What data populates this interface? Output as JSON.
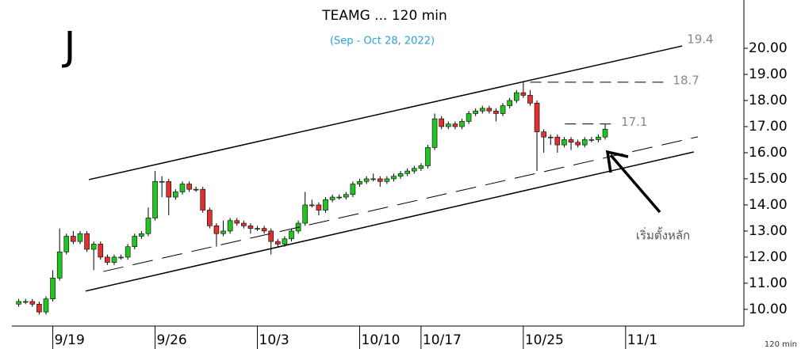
{
  "chart_data": {
    "type": "candlestick",
    "title": "TEAMG ... 120 min",
    "subtitle": "(Sep - Oct 28, 2022)",
    "logo": "J",
    "timeframe": "120 min",
    "annotation": "เริ่มตั้งหลัก",
    "up_color": "#22c422",
    "down_color": "#e03030",
    "xlim": [
      -1,
      106
    ],
    "xticks": [
      {
        "value": 5,
        "label": "9/19"
      },
      {
        "value": 20,
        "label": "9/26"
      },
      {
        "value": 35,
        "label": "10/3"
      },
      {
        "value": 50,
        "label": "10/10"
      },
      {
        "value": 59,
        "label": "10/17"
      },
      {
        "value": 74,
        "label": "10/25"
      },
      {
        "value": 89,
        "label": "11/1"
      }
    ],
    "ylim": [
      9.36,
      21.85
    ],
    "yticks": [
      {
        "value": 10,
        "label": "10.00"
      },
      {
        "value": 11,
        "label": "11.00"
      },
      {
        "value": 12,
        "label": "12.00"
      },
      {
        "value": 13,
        "label": "13.00"
      },
      {
        "value": 14,
        "label": "14.00"
      },
      {
        "value": 15,
        "label": "15.00"
      },
      {
        "value": 16,
        "label": "16.00"
      },
      {
        "value": 17,
        "label": "17.00"
      },
      {
        "value": 18,
        "label": "18.00"
      },
      {
        "value": 19,
        "label": "19.00"
      },
      {
        "value": 20,
        "label": "20.00"
      }
    ],
    "open": [
      10.2,
      10.3,
      10.3,
      10.2,
      9.9,
      10.4,
      11.2,
      12.2,
      12.8,
      12.6,
      12.9,
      12.3,
      12.5,
      12.0,
      11.8,
      12.0,
      12.0,
      12.4,
      12.8,
      12.9,
      13.5,
      14.9,
      14.9,
      14.3,
      14.5,
      14.8,
      14.6,
      14.6,
      13.8,
      13.2,
      12.9,
      13.0,
      13.4,
      13.3,
      13.2,
      13.1,
      13.1,
      13.0,
      12.6,
      12.5,
      12.7,
      13.0,
      13.3,
      14.0,
      14.0,
      13.8,
      14.2,
      14.3,
      14.3,
      14.4,
      14.8,
      14.9,
      15.0,
      15.0,
      14.9,
      15.0,
      15.1,
      15.2,
      15.3,
      15.4,
      15.5,
      16.2,
      17.3,
      17.0,
      17.1,
      17.0,
      17.2,
      17.5,
      17.6,
      17.7,
      17.6,
      17.5,
      17.8,
      18.0,
      18.3,
      18.2,
      17.9,
      16.8,
      16.6,
      16.6,
      16.3,
      16.5,
      16.4,
      16.3,
      16.5,
      16.5,
      16.6
    ],
    "high": [
      10.4,
      10.4,
      10.4,
      10.3,
      10.5,
      11.5,
      13.1,
      12.9,
      13.0,
      13.0,
      13.0,
      12.6,
      12.6,
      12.1,
      12.1,
      12.1,
      12.5,
      12.9,
      13.0,
      13.9,
      15.3,
      15.1,
      15.0,
      14.6,
      14.9,
      14.9,
      14.7,
      14.7,
      13.9,
      13.3,
      13.4,
      13.5,
      13.5,
      13.4,
      13.3,
      13.2,
      13.2,
      13.1,
      12.7,
      12.8,
      13.1,
      13.4,
      14.5,
      14.2,
      14.1,
      14.3,
      14.4,
      14.4,
      14.5,
      14.9,
      15.0,
      15.1,
      15.2,
      15.1,
      15.1,
      15.2,
      15.3,
      15.4,
      15.5,
      15.6,
      16.3,
      17.5,
      17.4,
      17.2,
      17.2,
      17.3,
      17.6,
      17.7,
      17.8,
      17.8,
      17.7,
      17.9,
      18.1,
      18.4,
      18.7,
      18.4,
      18.0,
      16.9,
      16.7,
      16.7,
      16.6,
      16.6,
      16.5,
      16.6,
      16.6,
      16.7,
      17.1
    ],
    "low": [
      10.1,
      10.2,
      10.1,
      9.8,
      9.8,
      10.3,
      11.1,
      12.1,
      12.5,
      12.5,
      12.2,
      11.5,
      11.9,
      11.7,
      11.7,
      11.9,
      11.9,
      12.3,
      12.7,
      12.8,
      13.4,
      14.3,
      13.6,
      14.2,
      14.4,
      14.5,
      14.5,
      13.7,
      13.1,
      12.4,
      12.8,
      12.9,
      13.2,
      13.1,
      12.9,
      13.0,
      12.9,
      12.1,
      12.4,
      12.4,
      12.6,
      12.9,
      13.2,
      13.9,
      13.6,
      13.7,
      14.1,
      14.2,
      14.2,
      14.3,
      14.7,
      14.8,
      14.9,
      14.7,
      14.8,
      14.9,
      15.0,
      15.1,
      15.2,
      15.3,
      15.4,
      16.1,
      16.9,
      16.9,
      16.9,
      16.9,
      17.1,
      17.4,
      17.5,
      17.5,
      17.2,
      17.4,
      17.7,
      17.9,
      18.1,
      17.8,
      15.3,
      16.0,
      16.3,
      16.0,
      16.2,
      16.1,
      16.2,
      16.2,
      16.4,
      16.4,
      16.5
    ],
    "close": [
      10.3,
      10.3,
      10.2,
      9.9,
      10.4,
      11.2,
      12.2,
      12.8,
      12.6,
      12.9,
      12.3,
      12.5,
      12.0,
      11.8,
      12.0,
      12.0,
      12.4,
      12.8,
      12.9,
      13.5,
      14.9,
      14.9,
      14.3,
      14.5,
      14.8,
      14.6,
      14.6,
      13.8,
      13.2,
      12.9,
      13.0,
      13.4,
      13.3,
      13.2,
      13.1,
      13.1,
      13.0,
      12.6,
      12.5,
      12.7,
      13.0,
      13.3,
      14.0,
      14.0,
      13.8,
      14.2,
      14.3,
      14.3,
      14.4,
      14.8,
      14.9,
      15.0,
      15.0,
      14.9,
      15.0,
      15.1,
      15.2,
      15.3,
      15.4,
      15.5,
      16.2,
      17.3,
      17.0,
      17.1,
      17.0,
      17.2,
      17.5,
      17.6,
      17.7,
      17.6,
      17.5,
      17.8,
      18.0,
      18.3,
      18.2,
      17.9,
      16.8,
      16.6,
      16.6,
      16.3,
      16.5,
      16.4,
      16.3,
      16.5,
      16.5,
      16.6,
      16.9
    ],
    "lines": [
      {
        "x": [
          10.3,
          97.3
        ],
        "y": [
          14.97,
          20.09
        ],
        "dashed": false,
        "label": 19.4
      },
      {
        "x": [
          12.4,
          99.6
        ],
        "y": [
          11.45,
          16.61
        ],
        "dashed": true
      },
      {
        "x": [
          9.8,
          99.0
        ],
        "y": [
          10.7,
          16.03
        ],
        "dashed": false
      }
    ],
    "levels": [
      {
        "value": 18.7,
        "x": [
          75,
          95
        ]
      },
      {
        "value": 17.1,
        "x": [
          80.1,
          87.4
        ]
      }
    ]
  }
}
